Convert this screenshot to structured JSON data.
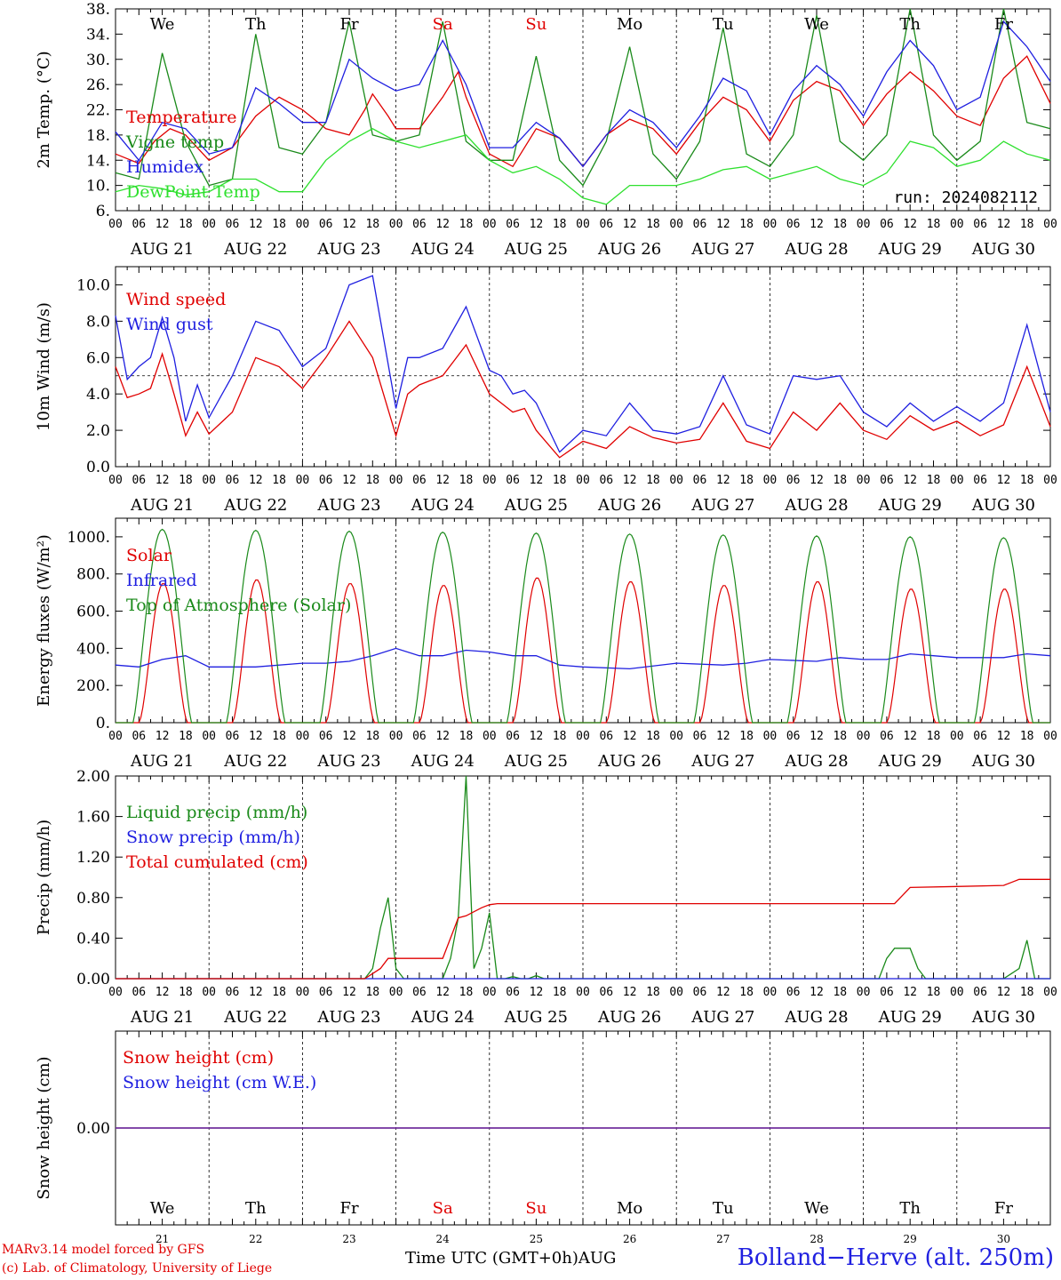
{
  "colors": {
    "red": "#e00000",
    "green": "#1a8a1a",
    "lightgreen": "#2ee02e",
    "blue": "#1f1fe0",
    "purple": "#7030a0",
    "axis": "#000000"
  },
  "day_names": [
    "We",
    "Th",
    "Fr",
    "Sa",
    "Su",
    "Mo",
    "Tu",
    "We",
    "Th",
    "Fr"
  ],
  "weekend_days": [
    "Sa",
    "Su"
  ],
  "date_labels": [
    "AUG 21",
    "AUG 22",
    "AUG 23",
    "AUG 24",
    "AUG 25",
    "AUG 26",
    "AUG 27",
    "AUG 28",
    "AUG 29",
    "AUG 30"
  ],
  "day_numbers": [
    "21",
    "22",
    "23",
    "24",
    "25",
    "26",
    "27",
    "28",
    "29",
    "30"
  ],
  "hour_ticks": [
    "00",
    "06",
    "12",
    "18"
  ],
  "last_hour_tick": "00",
  "run_label": "run: 2024082112",
  "footer": {
    "credit_line1": "MARv3.14 model forced by GFS",
    "credit_line2": "(c) Lab. of Climatology, University of Liege",
    "x_axis_title": "Time UTC (GMT+0h)",
    "month_label": "AUG",
    "station": "Bolland−Herve (alt. 250m)"
  },
  "chart_data": [
    {
      "type": "line",
      "ylabel": "2m Temp. (°C)",
      "ylim": [
        6,
        38
      ],
      "yticks": [
        "6.",
        "10.",
        "14.",
        "18.",
        "22.",
        "26.",
        "30.",
        "34.",
        "38."
      ],
      "x_unit": "hours since AUG 21 00 UTC",
      "series": [
        {
          "name": "Temperature",
          "color": "red",
          "x": [
            0,
            6,
            10,
            14,
            18,
            24,
            30,
            36,
            42,
            48,
            54,
            60,
            64,
            66,
            70,
            72,
            78,
            84,
            88,
            90,
            96,
            102,
            108,
            114,
            120,
            126,
            132,
            138,
            144,
            150,
            156,
            162,
            168,
            174,
            180,
            186,
            192,
            198,
            204,
            210,
            216,
            222,
            228,
            234,
            240
          ],
          "y": [
            15,
            13.5,
            17,
            19,
            18,
            14,
            16,
            21,
            24,
            22,
            19,
            18,
            22,
            24.5,
            21,
            19,
            19,
            24,
            28,
            24,
            15,
            13,
            19,
            17.5,
            13,
            18,
            20.5,
            19,
            15,
            20,
            24,
            22,
            17,
            23.5,
            26.5,
            25,
            19.5,
            24.5,
            28,
            25,
            21,
            19.5,
            27,
            30.5,
            23
          ]
        },
        {
          "name": "Vigne temp",
          "color": "green",
          "x": [
            0,
            6,
            12,
            18,
            24,
            30,
            36,
            42,
            48,
            54,
            60,
            66,
            72,
            78,
            84,
            90,
            96,
            102,
            108,
            114,
            120,
            126,
            132,
            138,
            144,
            150,
            156,
            162,
            168,
            174,
            180,
            186,
            192,
            198,
            204,
            210,
            216,
            222,
            228,
            234,
            240
          ],
          "y": [
            12,
            11,
            31,
            17,
            10,
            11,
            34,
            16,
            15,
            20,
            36,
            18,
            17,
            18,
            36,
            17,
            14,
            14,
            30.5,
            14,
            10,
            17,
            32,
            15,
            11,
            17,
            35,
            15,
            13,
            18,
            37,
            17,
            14,
            18,
            38,
            18,
            14,
            17,
            38,
            20,
            19
          ]
        },
        {
          "name": "Humidex",
          "color": "blue",
          "x": [
            0,
            6,
            12,
            18,
            24,
            30,
            36,
            42,
            48,
            54,
            60,
            66,
            72,
            78,
            84,
            90,
            96,
            102,
            108,
            114,
            120,
            126,
            132,
            138,
            144,
            150,
            156,
            162,
            168,
            174,
            180,
            186,
            192,
            198,
            204,
            210,
            216,
            222,
            228,
            234,
            240
          ],
          "y": [
            18.5,
            14,
            20,
            19,
            15,
            16,
            25.5,
            23,
            20,
            20,
            30,
            27,
            25,
            26,
            33,
            26,
            16,
            16,
            20,
            17.5,
            13,
            18,
            22,
            20,
            16,
            21,
            27,
            25,
            18,
            25,
            29,
            26,
            21,
            28,
            33,
            29,
            22,
            24,
            36,
            32,
            26.5
          ]
        },
        {
          "name": "DewPoint Temp",
          "color": "lightgreen",
          "x": [
            0,
            6,
            12,
            18,
            24,
            30,
            36,
            42,
            48,
            54,
            60,
            66,
            72,
            78,
            84,
            90,
            96,
            102,
            108,
            114,
            120,
            126,
            132,
            138,
            144,
            150,
            156,
            162,
            168,
            174,
            180,
            186,
            192,
            198,
            204,
            210,
            216,
            222,
            228,
            234,
            240
          ],
          "y": [
            9,
            10,
            9.5,
            8.5,
            9,
            11,
            11,
            9,
            9,
            14,
            17,
            19,
            17,
            16,
            17,
            18,
            14,
            12,
            13,
            11,
            8,
            7,
            10,
            10,
            10,
            11,
            12.5,
            13,
            11,
            12,
            13,
            11,
            10,
            12,
            17,
            16,
            13,
            14,
            17,
            15,
            14
          ]
        }
      ]
    },
    {
      "type": "line",
      "ylabel": "10m Wind (m/s)",
      "ylim": [
        0,
        11
      ],
      "yticks": [
        "0.0",
        "2.0",
        "4.0",
        "6.0",
        "8.0",
        "10.0"
      ],
      "reference_line": 5,
      "series": [
        {
          "name": "Wind speed",
          "color": "red",
          "x": [
            0,
            3,
            6,
            9,
            12,
            15,
            18,
            21,
            24,
            30,
            36,
            42,
            48,
            54,
            60,
            66,
            72,
            75,
            78,
            84,
            90,
            96,
            99,
            102,
            105,
            108,
            114,
            120,
            126,
            132,
            138,
            144,
            150,
            156,
            162,
            168,
            174,
            180,
            186,
            192,
            198,
            204,
            210,
            216,
            222,
            228,
            234,
            240
          ],
          "y": [
            5.5,
            3.8,
            4,
            4.3,
            6.2,
            4,
            1.7,
            3,
            1.8,
            3,
            6,
            5.5,
            4.3,
            6,
            8,
            6,
            1.7,
            4,
            4.5,
            5,
            6.7,
            4,
            3.5,
            3,
            3.2,
            2,
            0.5,
            1.4,
            1,
            2.2,
            1.6,
            1.3,
            1.5,
            3.5,
            1.4,
            1,
            3,
            2,
            3.5,
            2,
            1.5,
            2.8,
            2,
            2.5,
            1.7,
            2.3,
            5.5,
            2.2
          ]
        },
        {
          "name": "Wind gust",
          "color": "blue",
          "x": [
            0,
            3,
            6,
            9,
            12,
            15,
            18,
            21,
            24,
            30,
            36,
            42,
            48,
            54,
            60,
            66,
            72,
            75,
            78,
            84,
            90,
            96,
            99,
            102,
            105,
            108,
            114,
            120,
            126,
            132,
            138,
            144,
            150,
            156,
            162,
            168,
            174,
            180,
            186,
            192,
            198,
            204,
            210,
            216,
            222,
            228,
            234,
            240
          ],
          "y": [
            8.3,
            4.8,
            5.5,
            6,
            8.2,
            6,
            2.5,
            4.5,
            2.7,
            5,
            8,
            7.5,
            5.5,
            6.5,
            10,
            10.5,
            3.2,
            6,
            6,
            6.5,
            8.8,
            5.3,
            5,
            4,
            4.2,
            3.5,
            0.8,
            2,
            1.7,
            3.5,
            2,
            1.8,
            2.2,
            5,
            2.3,
            1.8,
            5,
            4.8,
            5,
            3,
            2.2,
            3.5,
            2.5,
            3.3,
            2.5,
            3.5,
            7.8,
            3
          ]
        }
      ]
    },
    {
      "type": "line",
      "ylabel": "Energy fluxes (W/m²)",
      "ylim": [
        0,
        1100
      ],
      "yticks": [
        "0.",
        "200.",
        "400.",
        "600.",
        "800.",
        "1000."
      ],
      "series": [
        {
          "name": "Solar",
          "color": "red",
          "daily_peak": [
            750,
            770,
            750,
            740,
            780,
            760,
            740,
            760,
            720,
            720
          ]
        },
        {
          "name": "Infrared",
          "color": "blue",
          "x": [
            0,
            6,
            12,
            18,
            24,
            36,
            48,
            54,
            60,
            66,
            72,
            78,
            84,
            90,
            96,
            102,
            108,
            114,
            120,
            132,
            144,
            156,
            162,
            168,
            180,
            186,
            192,
            198,
            204,
            210,
            216,
            228,
            234,
            240
          ],
          "y": [
            310,
            300,
            340,
            360,
            300,
            300,
            320,
            320,
            330,
            360,
            400,
            360,
            360,
            390,
            380,
            360,
            360,
            310,
            300,
            290,
            320,
            310,
            320,
            340,
            330,
            350,
            340,
            340,
            370,
            360,
            350,
            350,
            370,
            360
          ]
        },
        {
          "name": "Top of Atmosphere (Solar)",
          "color": "green",
          "daily_peak": [
            1040,
            1035,
            1030,
            1025,
            1020,
            1015,
            1010,
            1005,
            1000,
            995
          ]
        }
      ]
    },
    {
      "type": "line",
      "ylabel": "Precip (mm/h)",
      "ylim": [
        0,
        2
      ],
      "yticks": [
        "0.00",
        "0.40",
        "0.80",
        "1.20",
        "1.60",
        "2.00"
      ],
      "series": [
        {
          "name": "Liquid precip (mm/h)",
          "color": "green",
          "x": [
            0,
            64,
            66,
            68,
            70,
            72,
            74,
            84,
            86,
            88,
            90,
            92,
            94,
            96,
            98,
            100,
            102,
            104,
            106,
            108,
            110,
            196,
            198,
            200,
            204,
            206,
            208,
            228,
            230,
            232,
            234,
            236,
            240
          ],
          "y": [
            0,
            0,
            0.1,
            0.5,
            0.8,
            0.1,
            0,
            0,
            0.2,
            0.6,
            2,
            0.1,
            0.3,
            0.65,
            0,
            0,
            0.02,
            0,
            0,
            0.03,
            0,
            0,
            0.2,
            0.3,
            0.3,
            0.1,
            0,
            0,
            0.05,
            0.1,
            0.38,
            0,
            0
          ]
        },
        {
          "name": "Snow precip (mm/h)",
          "color": "blue",
          "x": [
            0,
            240
          ],
          "y": [
            0,
            0
          ]
        },
        {
          "name": "Total cumulated (cm)",
          "color": "red",
          "x": [
            0,
            64,
            68,
            70,
            72,
            84,
            86,
            88,
            90,
            94,
            96,
            98,
            200,
            204,
            216,
            228,
            230,
            232,
            240
          ],
          "y": [
            0,
            0,
            0.1,
            0.2,
            0.2,
            0.2,
            0.4,
            0.6,
            0.62,
            0.7,
            0.73,
            0.74,
            0.74,
            0.9,
            0.91,
            0.92,
            0.95,
            0.98,
            0.98
          ]
        }
      ]
    },
    {
      "type": "line",
      "ylabel": "Snow height (cm)",
      "ylim": [
        -1,
        1
      ],
      "yticks": [
        "0.00"
      ],
      "series": [
        {
          "name": "Snow height (cm)",
          "color": "red",
          "x": [
            0,
            240
          ],
          "y": [
            0,
            0
          ]
        },
        {
          "name": "Snow height (cm W.E.)",
          "color": "blue",
          "x": [
            0,
            240
          ],
          "y": [
            0,
            0
          ]
        }
      ]
    }
  ]
}
